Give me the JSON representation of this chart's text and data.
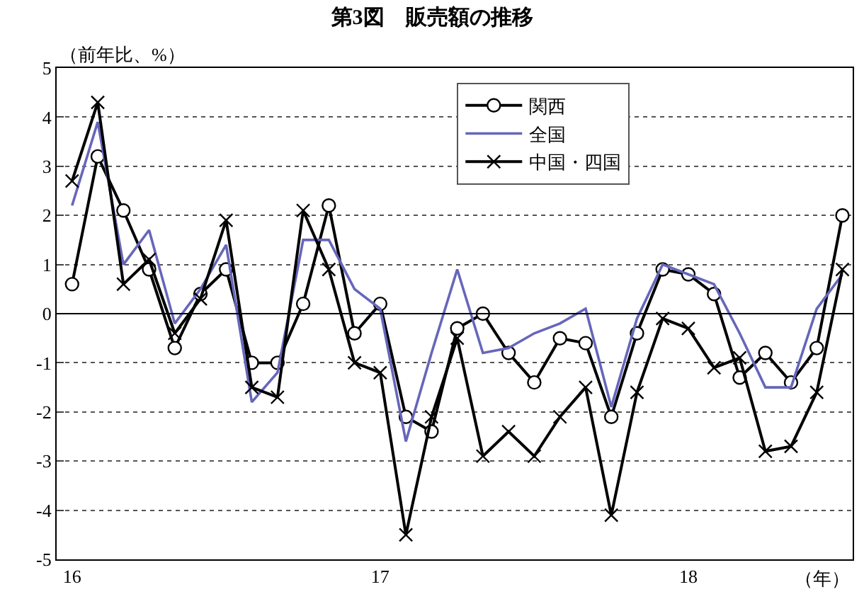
{
  "chart_data": {
    "type": "line",
    "title": "第3図　販売額の推移",
    "ylabel": "（前年比、%）",
    "xlabel": "（年）",
    "categories": [
      "16",
      null,
      null,
      null,
      null,
      null,
      null,
      null,
      null,
      null,
      null,
      null,
      "17",
      null,
      null,
      null,
      null,
      null,
      null,
      null,
      null,
      null,
      null,
      null,
      "18",
      null,
      null,
      null,
      null,
      null,
      null
    ],
    "series": [
      {
        "name": "関西",
        "color": "#000000",
        "marker": "circle",
        "values": [
          0.6,
          3.2,
          2.1,
          0.9,
          -0.7,
          0.4,
          0.9,
          -1.0,
          -1.0,
          0.2,
          2.2,
          -0.4,
          0.2,
          -2.1,
          -2.4,
          -0.3,
          0.0,
          -0.8,
          -1.4,
          -0.5,
          -0.6,
          -2.1,
          -0.4,
          0.9,
          0.8,
          0.4,
          -1.3,
          -0.8,
          -1.4,
          -0.7,
          2.0
        ]
      },
      {
        "name": "全国",
        "color": "#6666bb",
        "marker": "none",
        "values": [
          2.2,
          3.9,
          1.0,
          1.7,
          -0.2,
          0.5,
          1.4,
          -1.8,
          -1.2,
          1.5,
          1.5,
          0.5,
          0.1,
          -2.6,
          -0.8,
          0.9,
          -0.8,
          -0.7,
          -0.4,
          -0.2,
          0.1,
          -1.9,
          -0.1,
          1.0,
          0.8,
          0.6,
          -0.4,
          -1.5,
          -1.5,
          0.1,
          0.8
        ]
      },
      {
        "name": "中国・四国",
        "color": "#000000",
        "marker": "cross",
        "values": [
          2.7,
          4.3,
          0.6,
          1.1,
          -0.4,
          0.3,
          1.9,
          -1.5,
          -1.7,
          2.1,
          0.9,
          -1.0,
          -1.2,
          -4.5,
          -2.1,
          -0.5,
          -2.9,
          -2.4,
          -2.9,
          -2.1,
          -1.5,
          -4.1,
          -1.6,
          -0.1,
          -0.3,
          -1.1,
          -0.9,
          -2.8,
          -2.7,
          -1.6,
          0.9
        ]
      }
    ],
    "ylim": [
      -5,
      5
    ],
    "yticks": [
      -5,
      -4,
      -3,
      -2,
      -1,
      0,
      1,
      2,
      3,
      4,
      5
    ],
    "grid": "y",
    "legend": "top right",
    "ref_lines": [
      {
        "axis": "y",
        "value": 0,
        "label": null,
        "color": "#000000",
        "line_style": "solid"
      }
    ]
  }
}
